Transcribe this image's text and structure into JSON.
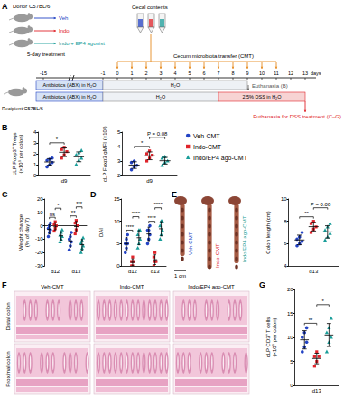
{
  "schematic": {
    "panel": "A",
    "donor": "Donor C57BL/6",
    "treatments": [
      {
        "label": "Veh",
        "color": "#2343c4"
      },
      {
        "label": "Indo",
        "color": "#e0242b"
      },
      {
        "label": "Indo + EP4 agonist",
        "color": "#1a9e9a"
      }
    ],
    "treatment_duration": "5-day treatment",
    "cecal_contents": "Cecal contents",
    "transfer": "Cecum microbiota transfer (CMT)",
    "transfer_days": [
      0,
      1,
      2,
      3,
      4,
      5,
      6,
      7,
      8,
      9,
      10,
      11
    ],
    "recipient": "Recipient C57BL/6",
    "days": [
      -15,
      -1,
      0,
      1,
      2,
      3,
      4,
      5,
      6,
      7,
      8,
      9,
      10,
      11,
      12,
      13
    ],
    "day_unit": "days",
    "rows": [
      [
        {
          "label": "Antibiotics (ABX) in H₂O",
          "from": -15,
          "to": -1
        },
        {
          "label": "H₂O",
          "from": -1,
          "to": 9
        }
      ],
      [
        {
          "label": "Antibiotics (ABX) in H₂O",
          "from": -15,
          "to": -1
        },
        {
          "label": "H₂O",
          "from": -1,
          "to": 7
        },
        {
          "label": "2.5% DSS in H₂O",
          "from": 7,
          "to": 13
        }
      ]
    ],
    "endpoints": [
      {
        "label": "Euthanasia (B)",
        "day": 9
      },
      {
        "label": "Euthanasia for DSS treatment (C–G)",
        "day": 13
      }
    ]
  },
  "colon_photo": {
    "panel": "E",
    "labels": [
      {
        "text": "Veh-CMT",
        "color": "#2343c4"
      },
      {
        "text": "Indo-CMT",
        "color": "#e0242b"
      },
      {
        "text": "Indo/EP4 ago-CMT",
        "color": "#1a9e9a"
      }
    ],
    "scale_bar": "1 cm"
  },
  "histology": {
    "panel": "F",
    "columns": [
      "Veh-CMT",
      "Indo-CMT",
      "Indo/EP4 ago-CMT"
    ],
    "rows": [
      "Distal colon",
      "Proximal colon"
    ]
  },
  "chart_data": [
    {
      "type": "scatter",
      "panel": "B",
      "ylabel": "cLP Foxp3⁺ Tregs\n(×10⁵ per colon)",
      "categories": [
        "d9"
      ],
      "ylim": [
        0,
        4
      ],
      "yticks": [
        0,
        1,
        2,
        3,
        4
      ],
      "grid": false,
      "series": [
        {
          "name": "Veh-CMT",
          "color": "#2343c4",
          "marker": "circle",
          "values": [
            [
              0.8,
              1.0,
              1.2,
              1.4,
              1.5,
              1.6
            ]
          ],
          "mean": [
            1.25
          ],
          "sd": [
            0.3
          ]
        },
        {
          "name": "Indo-CMT",
          "color": "#e0242b",
          "marker": "square",
          "values": [
            [
              1.6,
              1.9,
              2.2,
              2.4,
              2.6
            ]
          ],
          "mean": [
            2.14
          ],
          "sd": [
            0.4
          ]
        },
        {
          "name": "Indo/EP4 ago-CMT",
          "color": "#1a9e9a",
          "marker": "triangle",
          "values": [
            [
              1.0,
              1.4,
              1.6,
              1.9,
              2.1,
              2.3
            ]
          ],
          "mean": [
            1.72
          ],
          "sd": [
            0.45
          ]
        }
      ],
      "annotations": [
        {
          "text": "*",
          "category": "d9",
          "from": "Veh-CMT",
          "to": "Indo-CMT"
        }
      ]
    },
    {
      "type": "scatter",
      "ylabel": "cLP Foxp3 gMFI (×10³)",
      "categories": [
        "d9"
      ],
      "ylim": [
        2,
        5
      ],
      "yticks": [
        2,
        3,
        4,
        5
      ],
      "grid": false,
      "legend": "right",
      "series": [
        {
          "name": "Veh-CMT",
          "color": "#2343c4",
          "marker": "circle",
          "values": [
            [
              2.4,
              2.6,
              2.7,
              2.9,
              3.0
            ]
          ],
          "mean": [
            2.72
          ],
          "sd": [
            0.23
          ]
        },
        {
          "name": "Indo-CMT",
          "color": "#e0242b",
          "marker": "square",
          "values": [
            [
              3.0,
              3.2,
              3.4,
              3.5,
              3.7
            ]
          ],
          "mean": [
            3.36
          ],
          "sd": [
            0.27
          ]
        },
        {
          "name": "Indo/EP4 ago-CMT",
          "color": "#1a9e9a",
          "marker": "triangle",
          "values": [
            [
              2.7,
              2.9,
              3.0,
              3.2,
              3.3
            ]
          ],
          "mean": [
            3.02
          ],
          "sd": [
            0.23
          ]
        }
      ],
      "annotations": [
        {
          "text": "*",
          "category": "d9",
          "from": "Veh-CMT",
          "to": "Indo-CMT"
        },
        {
          "text": "P = 0.08",
          "category": "d9",
          "from": "Indo-CMT",
          "to": "Indo/EP4 ago-CMT"
        }
      ]
    },
    {
      "type": "scatter",
      "panel": "C",
      "ylabel": "Weight change\n(% of day 7)",
      "categories": [
        "d12",
        "d13"
      ],
      "ylim": [
        -30,
        20
      ],
      "yticks": [
        -30,
        -20,
        -10,
        0,
        10,
        20
      ],
      "grid": false,
      "series": [
        {
          "name": "Veh-CMT",
          "color": "#2343c4",
          "marker": "circle",
          "values": [
            [
              -8,
              -5,
              -3,
              -2,
              0,
              2
            ],
            [
              -18,
              -15,
              -12,
              -10,
              -8,
              -5
            ]
          ],
          "mean": [
            -2.67,
            -11.33
          ],
          "sd": [
            3.5,
            4.6
          ]
        },
        {
          "name": "Indo-CMT",
          "color": "#e0242b",
          "marker": "square",
          "values": [
            [
              -4,
              -2,
              0,
              1,
              3
            ],
            [
              -6,
              -3,
              0,
              2,
              4
            ]
          ],
          "mean": [
            -0.4,
            -0.6
          ],
          "sd": [
            2.7,
            3.8
          ]
        },
        {
          "name": "Indo/EP4 ago-CMT",
          "color": "#1a9e9a",
          "marker": "triangle",
          "values": [
            [
              -12,
              -10,
              -8,
              -7,
              -5,
              -3
            ],
            [
              -20,
              -17,
              -15,
              -13,
              -11,
              -9
            ]
          ],
          "mean": [
            -7.5,
            -14.17
          ],
          "sd": [
            3.1,
            3.9
          ]
        }
      ],
      "annotations": [
        {
          "text": "ns",
          "category": "d12",
          "from": "Veh-CMT",
          "to": "Indo-CMT"
        },
        {
          "text": "*",
          "category": "d12",
          "from": "Indo-CMT",
          "to": "Indo/EP4 ago-CMT"
        },
        {
          "text": "**",
          "category": "d13",
          "from": "Veh-CMT",
          "to": "Indo-CMT"
        },
        {
          "text": "***",
          "category": "d13",
          "from": "Indo-CMT",
          "to": "Indo/EP4 ago-CMT"
        }
      ]
    },
    {
      "type": "scatter",
      "panel": "D",
      "ylabel": "DAI",
      "categories": [
        "d12",
        "d13"
      ],
      "ylim": [
        0,
        15
      ],
      "yticks": [
        0,
        5,
        10,
        15
      ],
      "grid": false,
      "series": [
        {
          "name": "Veh-CMT",
          "color": "#2343c4",
          "marker": "circle",
          "values": [
            [
              3,
              4,
              5,
              5,
              6,
              7
            ],
            [
              5,
              6,
              7,
              8,
              8,
              9
            ]
          ],
          "mean": [
            5,
            7.17
          ],
          "sd": [
            1.4,
            1.5
          ]
        },
        {
          "name": "Indo-CMT",
          "color": "#e0242b",
          "marker": "square",
          "values": [
            [
              0,
              0,
              1,
              1,
              2
            ],
            [
              0,
              1,
              1,
              2,
              3
            ]
          ],
          "mean": [
            0.8,
            1.4
          ],
          "sd": [
            0.8,
            1.1
          ]
        },
        {
          "name": "Indo/EP4 ago-CMT",
          "color": "#1a9e9a",
          "marker": "triangle",
          "values": [
            [
              4,
              5,
              6,
              7,
              8,
              8
            ],
            [
              6,
              7,
              8,
              9,
              10,
              10
            ]
          ],
          "mean": [
            6.33,
            8.33
          ],
          "sd": [
            1.6,
            1.6
          ]
        }
      ],
      "annotations": [
        {
          "text": "****",
          "category": "d12",
          "from": "Veh-CMT",
          "to": "Indo-CMT"
        },
        {
          "text": "****",
          "category": "d12",
          "from": "Indo-CMT",
          "to": "Indo/EP4 ago-CMT"
        },
        {
          "text": "****",
          "category": "d13",
          "from": "Veh-CMT",
          "to": "Indo-CMT"
        },
        {
          "text": "****",
          "category": "d13",
          "from": "Indo-CMT",
          "to": "Indo/EP4 ago-CMT"
        }
      ]
    },
    {
      "type": "scatter",
      "ylabel": "Colon length (cm)",
      "categories": [
        "d13"
      ],
      "ylim": [
        4,
        10
      ],
      "yticks": [
        4,
        6,
        8,
        10
      ],
      "grid": false,
      "series": [
        {
          "name": "Veh-CMT",
          "color": "#2343c4",
          "marker": "circle",
          "values": [
            [
              5.8,
              6.0,
              6.2,
              6.4,
              6.6,
              7.0
            ]
          ],
          "mean": [
            6.33
          ],
          "sd": [
            0.43
          ]
        },
        {
          "name": "Indo-CMT",
          "color": "#e0242b",
          "marker": "square",
          "values": [
            [
              7.0,
              7.3,
              7.5,
              7.8,
              8.0
            ]
          ],
          "mean": [
            7.52
          ],
          "sd": [
            0.39
          ]
        },
        {
          "name": "Indo/EP4 ago-CMT",
          "color": "#1a9e9a",
          "marker": "triangle",
          "values": [
            [
              6.3,
              6.6,
              6.9,
              7.2,
              7.5,
              7.8
            ]
          ],
          "mean": [
            7.05
          ],
          "sd": [
            0.55
          ]
        }
      ],
      "annotations": [
        {
          "text": "**",
          "category": "d13",
          "from": "Veh-CMT",
          "to": "Indo-CMT"
        },
        {
          "text": "P = 0.08",
          "category": "d13",
          "from": "Indo-CMT",
          "to": "Indo/EP4 ago-CMT"
        }
      ]
    },
    {
      "type": "scatter",
      "panel": "G",
      "ylabel": "cLP CD3⁺ T cells\n(×10⁵ per colon)",
      "categories": [
        "d13"
      ],
      "ylim": [
        0,
        20
      ],
      "yticks": [
        0,
        5,
        10,
        15,
        20
      ],
      "grid": false,
      "series": [
        {
          "name": "Veh-CMT",
          "color": "#2343c4",
          "marker": "circle",
          "values": [
            [
              7,
              8,
              9,
              10,
              11,
              12
            ]
          ],
          "mean": [
            9.5
          ],
          "sd": [
            1.9
          ]
        },
        {
          "name": "Indo-CMT",
          "color": "#e0242b",
          "marker": "square",
          "values": [
            [
              4,
              5,
              6,
              6,
              7
            ]
          ],
          "mean": [
            5.6
          ],
          "sd": [
            1.1
          ]
        },
        {
          "name": "Indo/EP4 ago-CMT",
          "color": "#1a9e9a",
          "marker": "triangle",
          "values": [
            [
              7,
              9,
              10,
              11,
              12,
              14
            ]
          ],
          "mean": [
            10.5
          ],
          "sd": [
            2.4
          ]
        }
      ],
      "annotations": [
        {
          "text": "**",
          "category": "d13",
          "from": "Veh-CMT",
          "to": "Indo-CMT"
        },
        {
          "text": "*",
          "category": "d13",
          "from": "Indo-CMT",
          "to": "Indo/EP4 ago-CMT"
        }
      ]
    }
  ]
}
